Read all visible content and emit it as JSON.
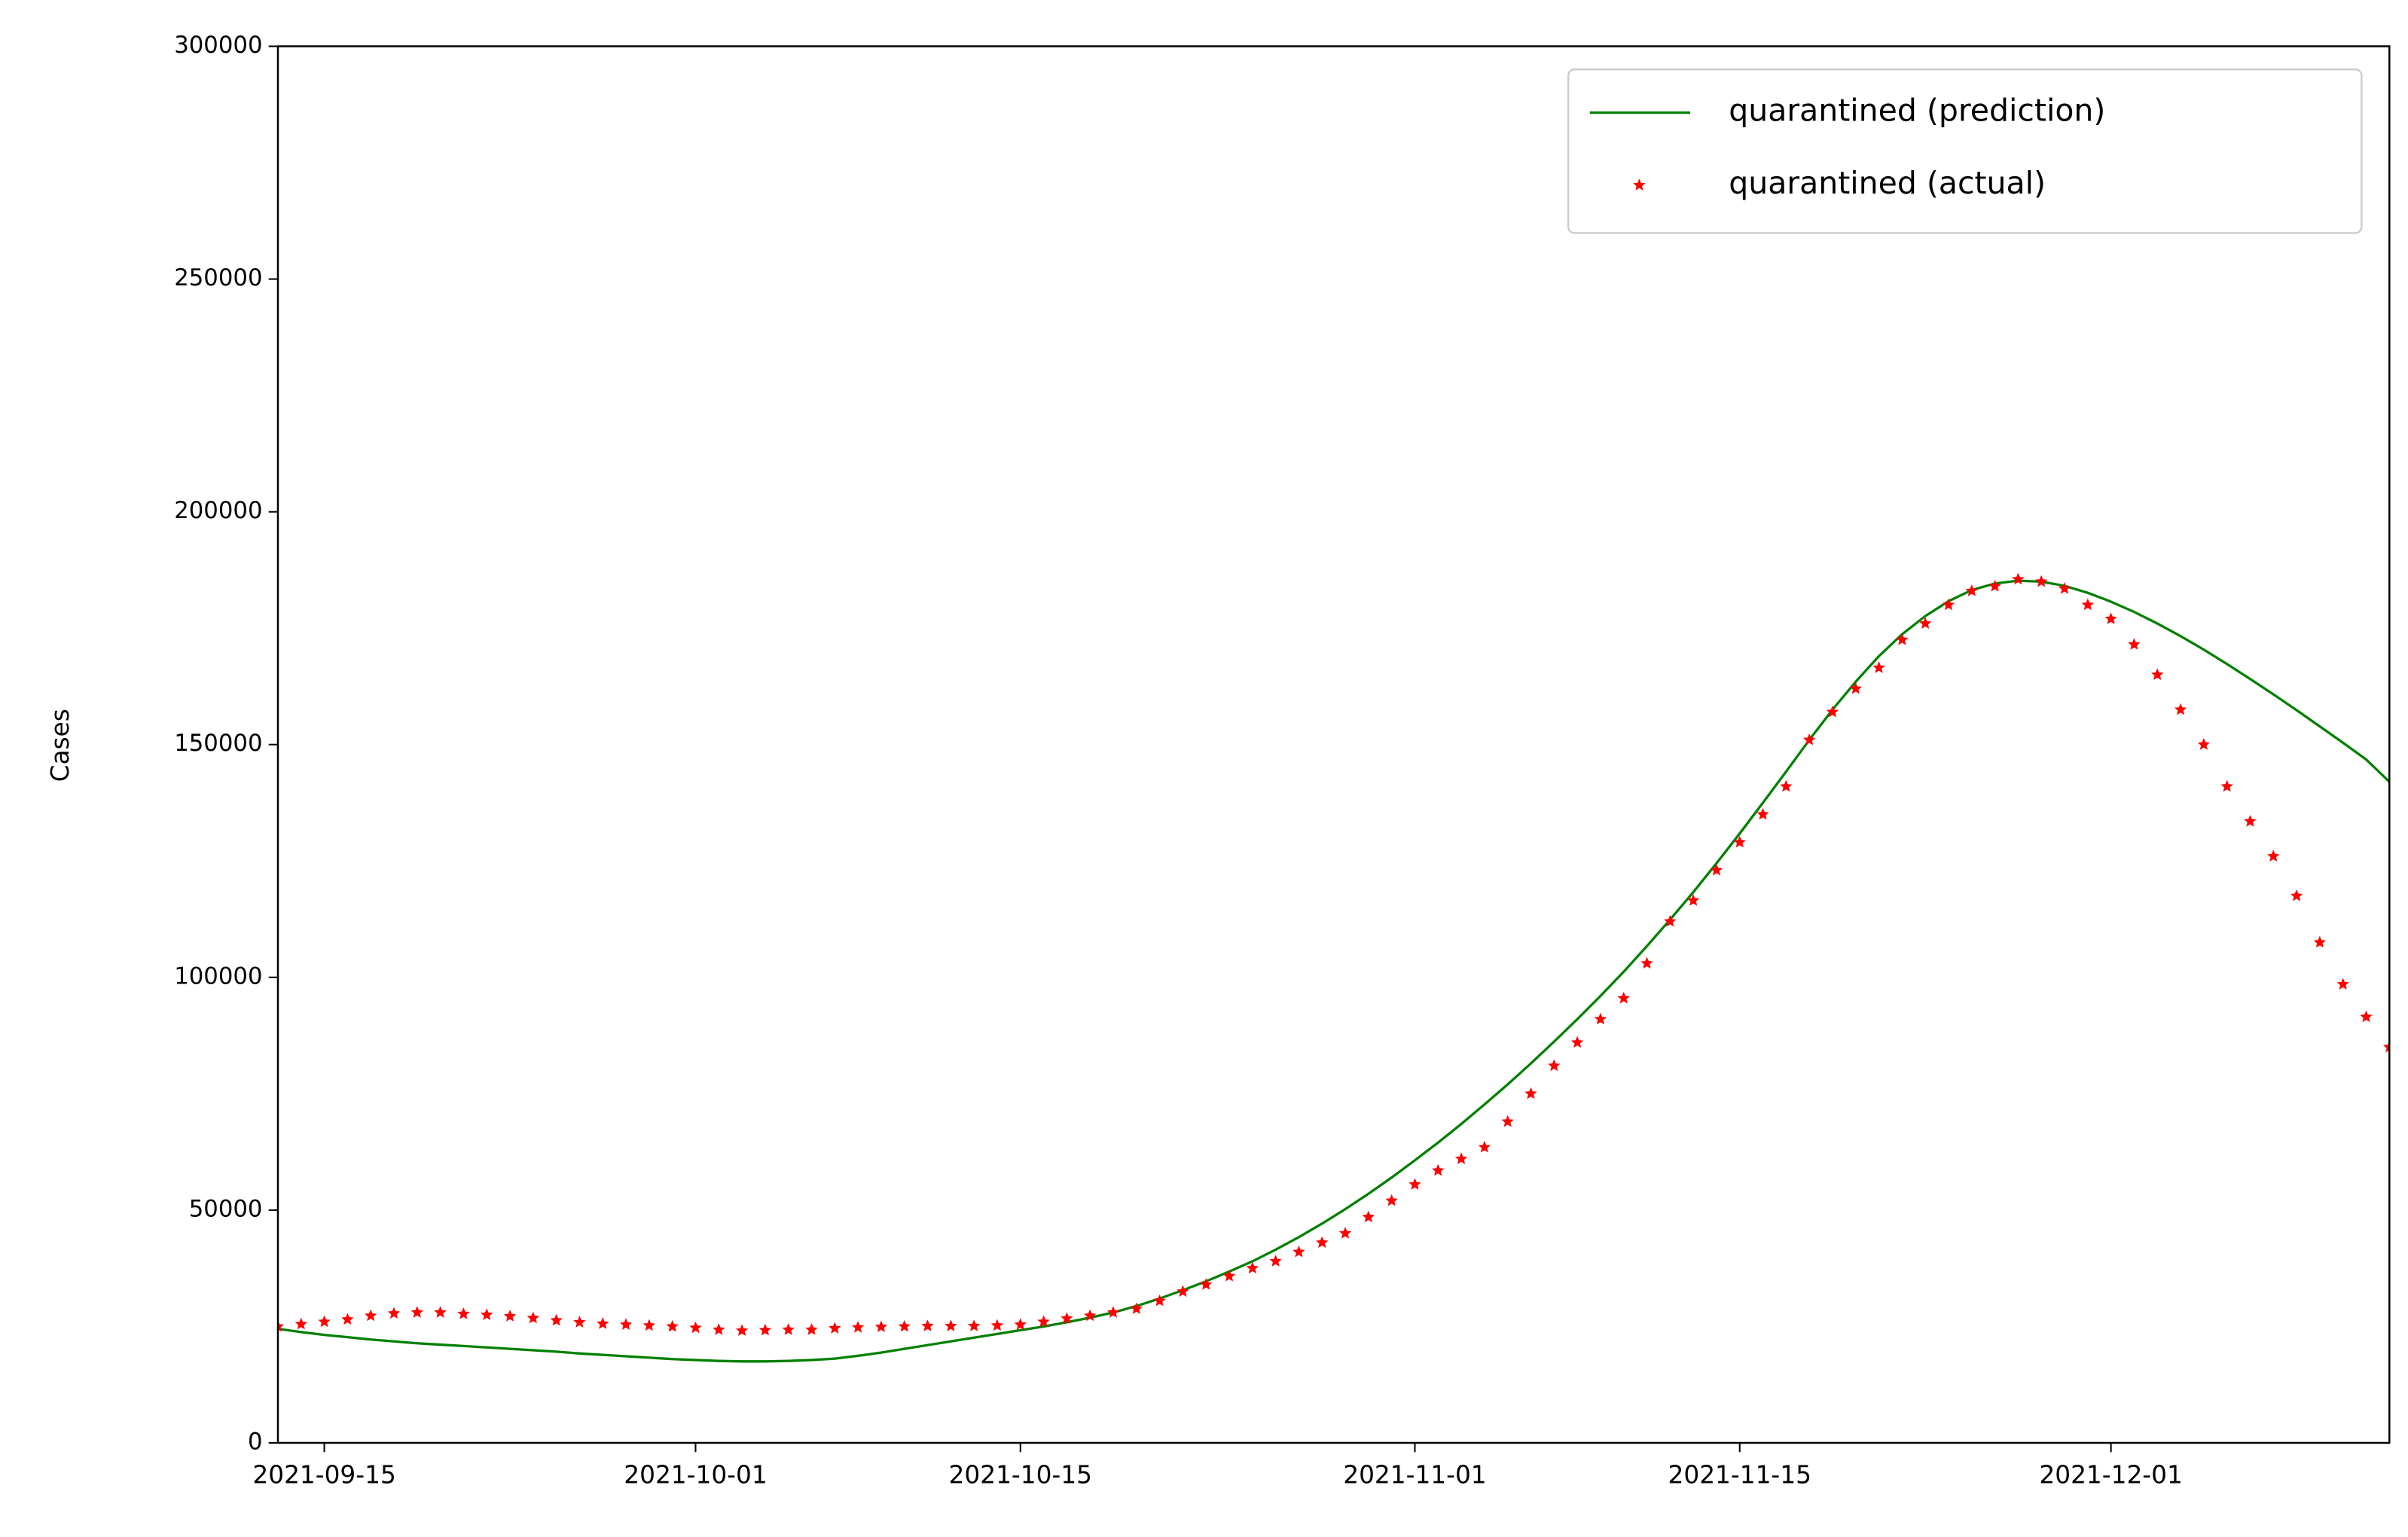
{
  "chart_data": {
    "type": "line",
    "ylabel": "Cases",
    "x": [
      "2021-09-13",
      "2021-09-14",
      "2021-09-15",
      "2021-09-16",
      "2021-09-17",
      "2021-09-18",
      "2021-09-19",
      "2021-09-20",
      "2021-09-21",
      "2021-09-22",
      "2021-09-23",
      "2021-09-24",
      "2021-09-25",
      "2021-09-26",
      "2021-09-27",
      "2021-09-28",
      "2021-09-29",
      "2021-09-30",
      "2021-10-01",
      "2021-10-02",
      "2021-10-03",
      "2021-10-04",
      "2021-10-05",
      "2021-10-06",
      "2021-10-07",
      "2021-10-08",
      "2021-10-09",
      "2021-10-10",
      "2021-10-11",
      "2021-10-12",
      "2021-10-13",
      "2021-10-14",
      "2021-10-15",
      "2021-10-16",
      "2021-10-17",
      "2021-10-18",
      "2021-10-19",
      "2021-10-20",
      "2021-10-21",
      "2021-10-22",
      "2021-10-23",
      "2021-10-24",
      "2021-10-25",
      "2021-10-26",
      "2021-10-27",
      "2021-10-28",
      "2021-10-29",
      "2021-10-30",
      "2021-10-31",
      "2021-11-01",
      "2021-11-02",
      "2021-11-03",
      "2021-11-04",
      "2021-11-05",
      "2021-11-06",
      "2021-11-07",
      "2021-11-08",
      "2021-11-09",
      "2021-11-10",
      "2021-11-11",
      "2021-11-12",
      "2021-11-13",
      "2021-11-14",
      "2021-11-15",
      "2021-11-16",
      "2021-11-17",
      "2021-11-18",
      "2021-11-19",
      "2021-11-20",
      "2021-11-21",
      "2021-11-22",
      "2021-11-23",
      "2021-11-24",
      "2021-11-25",
      "2021-11-26",
      "2021-11-27",
      "2021-11-28",
      "2021-11-29",
      "2021-11-30",
      "2021-12-01",
      "2021-12-02",
      "2021-12-03",
      "2021-12-04",
      "2021-12-05",
      "2021-12-06",
      "2021-12-07",
      "2021-12-08",
      "2021-12-09",
      "2021-12-10",
      "2021-12-11",
      "2021-12-12",
      "2021-12-13"
    ],
    "series": [
      {
        "name": "quarantined (prediction)",
        "color": "#008000",
        "kind": "line",
        "values": [
          24500,
          23800,
          23200,
          22700,
          22200,
          21800,
          21400,
          21100,
          20800,
          20500,
          20200,
          19900,
          19600,
          19200,
          18900,
          18600,
          18300,
          18000,
          17800,
          17600,
          17500,
          17500,
          17600,
          17800,
          18100,
          18700,
          19400,
          20200,
          21000,
          21800,
          22600,
          23400,
          24200,
          25000,
          25900,
          26900,
          28000,
          29400,
          31000,
          32800,
          34700,
          36800,
          39000,
          41500,
          44200,
          47100,
          50200,
          53500,
          57000,
          60700,
          64500,
          68500,
          72700,
          77000,
          81500,
          86200,
          91000,
          96000,
          101200,
          106700,
          112400,
          118300,
          124500,
          130900,
          137500,
          144200,
          151000,
          157500,
          163500,
          169000,
          173700,
          177600,
          180800,
          183200,
          184600,
          185200,
          185000,
          184100,
          182600,
          180700,
          178500,
          176000,
          173300,
          170400,
          167300,
          164100,
          160800,
          157400,
          153900,
          150400,
          146800,
          142000
        ]
      },
      {
        "name": "quarantined (actual)",
        "color": "#ff0000",
        "kind": "star",
        "values": [
          25000,
          25500,
          26000,
          26500,
          27300,
          27800,
          28000,
          28000,
          27700,
          27500,
          27200,
          26800,
          26300,
          25900,
          25600,
          25400,
          25200,
          25000,
          24700,
          24300,
          24100,
          24200,
          24300,
          24300,
          24600,
          24800,
          24900,
          25000,
          25100,
          25100,
          25100,
          25200,
          25400,
          26000,
          26700,
          27300,
          28000,
          28800,
          30500,
          32500,
          34000,
          35800,
          37500,
          39000,
          41000,
          43000,
          45000,
          48500,
          52000,
          55500,
          58500,
          61000,
          63500,
          69000,
          75000,
          81000,
          86000,
          91000,
          95500,
          103000,
          112000,
          116500,
          123000,
          129000,
          135000,
          141000,
          151000,
          157000,
          162000,
          166500,
          172500,
          176000,
          180000,
          183000,
          184000,
          185500,
          185000,
          183500,
          180000,
          177000,
          171500,
          165000,
          157500,
          150000,
          141000,
          133500,
          126000,
          117500,
          107500,
          98500,
          91500,
          85000
        ]
      }
    ],
    "xlim": [
      "2021-09-13",
      "2021-12-13"
    ],
    "xticks": [
      "2021-09-15",
      "2021-10-01",
      "2021-10-15",
      "2021-11-01",
      "2021-11-15",
      "2021-12-01"
    ],
    "ylim": [
      0,
      300000
    ],
    "yticks": [
      0,
      50000,
      100000,
      150000,
      200000,
      250000,
      300000
    ],
    "legend": "upper right"
  }
}
